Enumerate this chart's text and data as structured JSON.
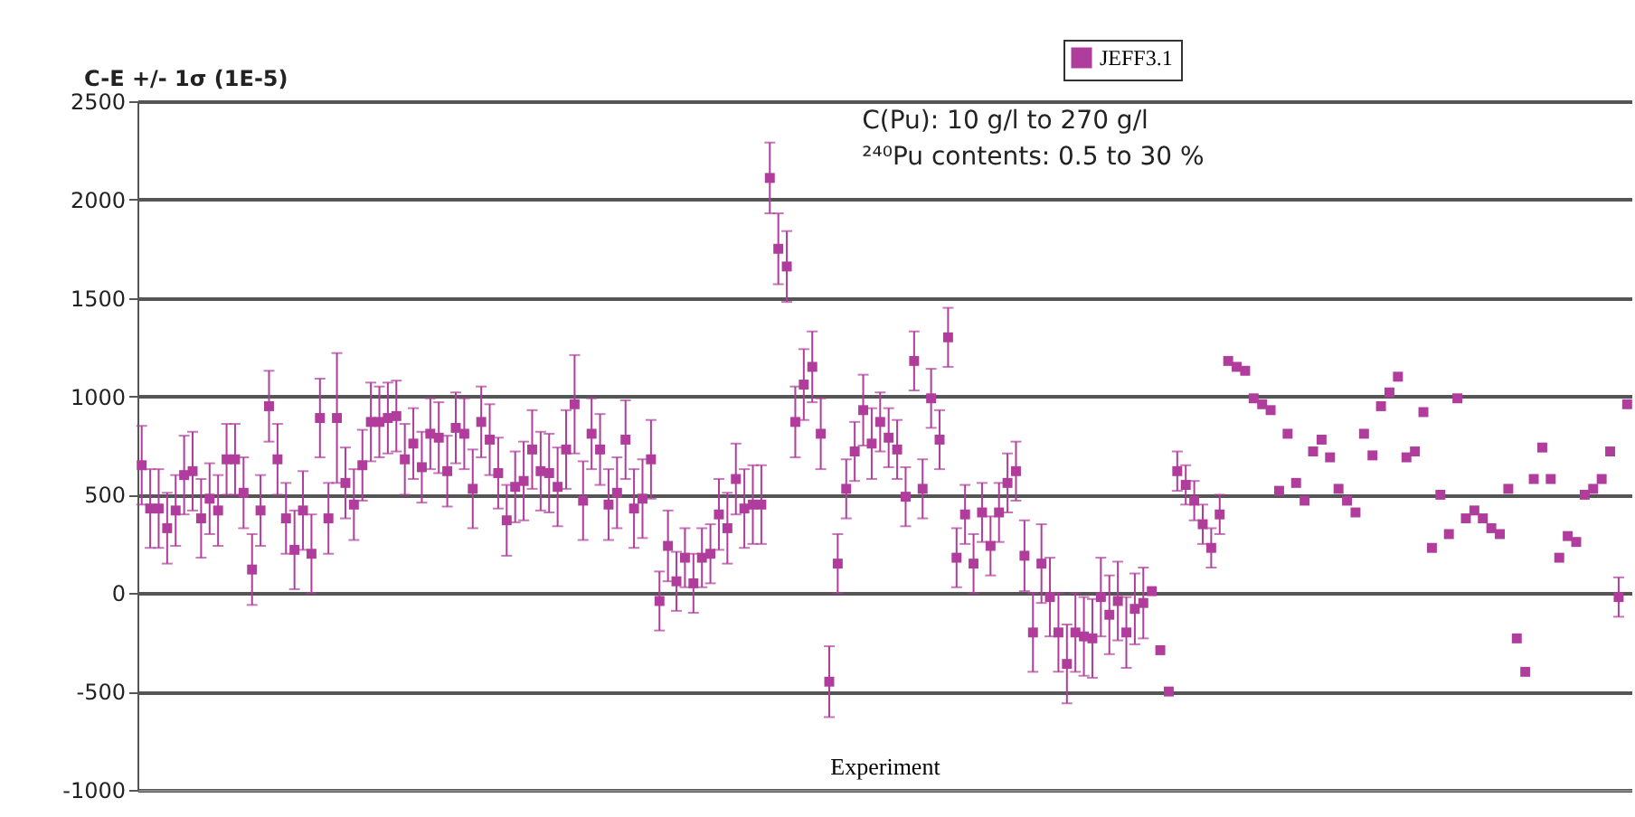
{
  "chart_data": {
    "type": "scatter",
    "ylabel": "C-E +/- 1σ (1E-5)",
    "xlabel": "Experiment",
    "annotations": [
      "C(Pu): 10 g/l to 270 g/l",
      "²⁴⁰Pu contents: 0.5 to 30 %"
    ],
    "categories": [
      null,
      null,
      null,
      null,
      null,
      null,
      null,
      null,
      null,
      null,
      null,
      null,
      null,
      null,
      null,
      null,
      null,
      null,
      null,
      null,
      null,
      null,
      null,
      null,
      null,
      null,
      null,
      null,
      null,
      null,
      null,
      null,
      null,
      null,
      null,
      null,
      null,
      null,
      null,
      null,
      null,
      null,
      null,
      null,
      null,
      null,
      null,
      null,
      null,
      null,
      null,
      null,
      null,
      null,
      null,
      null,
      null,
      null,
      null,
      null,
      null,
      null,
      null,
      null,
      null,
      null,
      null,
      null,
      null,
      null,
      null,
      null,
      null,
      null,
      null,
      null,
      null,
      null,
      null,
      null,
      null,
      null,
      null,
      null,
      null,
      null,
      null,
      null,
      null,
      null,
      null,
      null,
      null,
      null,
      null,
      null,
      null,
      null,
      null,
      null,
      null,
      null,
      null,
      null,
      null,
      null,
      null,
      null,
      null,
      null,
      null,
      null,
      null,
      null,
      null,
      null,
      null,
      null,
      null,
      null,
      null,
      null,
      null,
      null,
      null,
      null,
      null,
      null,
      null,
      null,
      null,
      null,
      null,
      null,
      null,
      null,
      null,
      null,
      null,
      null,
      null,
      null,
      null,
      null,
      null,
      null,
      null,
      null,
      null,
      null,
      null,
      null,
      null,
      null,
      null,
      null,
      null,
      null,
      null,
      null,
      null,
      null,
      null,
      null,
      null,
      null,
      null,
      null,
      null,
      null,
      null,
      null,
      null,
      null,
      null,
      null
    ],
    "series": [
      {
        "name": "JEFF3.1",
        "color": "#b03c9c",
        "values": [
          650,
          430,
          430,
          330,
          420,
          600,
          620,
          380,
          480,
          420,
          680,
          680,
          510,
          120,
          420,
          950,
          680,
          380,
          220,
          420,
          200,
          890,
          380,
          890,
          560,
          450,
          650,
          870,
          870,
          890,
          900,
          680,
          760,
          640,
          810,
          790,
          620,
          840,
          810,
          530,
          870,
          780,
          610,
          370,
          540,
          570,
          730,
          620,
          610,
          540,
          730,
          960,
          470,
          810,
          730,
          450,
          510,
          780,
          430,
          480,
          680,
          -40,
          240,
          60,
          180,
          50,
          180,
          200,
          400,
          330,
          580,
          430,
          450,
          450,
          2110,
          1750,
          1660,
          870,
          1060,
          1150,
          810,
          -450,
          150,
          530,
          720,
          930,
          760,
          870,
          790,
          730,
          490,
          1180,
          530,
          990,
          780,
          1300,
          180,
          400,
          150,
          410,
          240,
          410,
          560,
          620,
          190,
          -200,
          150,
          -20,
          -200,
          -360,
          -200,
          -220,
          -230,
          -20,
          -110,
          -40,
          -200,
          -80,
          -50,
          10,
          -290,
          -500,
          620,
          550,
          470,
          350,
          230,
          400,
          1180,
          1150,
          1130,
          990,
          960,
          930,
          520,
          810,
          560,
          470,
          720,
          780,
          690,
          530,
          470,
          410,
          810,
          700,
          950,
          1020,
          1100,
          690,
          720,
          920,
          230,
          500,
          300,
          990,
          380,
          420,
          380,
          330,
          300,
          530,
          -230,
          -400,
          580,
          740,
          580,
          180,
          290,
          260,
          500,
          530,
          580,
          720,
          -20,
          960
        ],
        "errors": [
          200,
          200,
          200,
          180,
          180,
          200,
          200,
          200,
          180,
          180,
          180,
          180,
          180,
          180,
          180,
          180,
          180,
          180,
          200,
          200,
          200,
          200,
          180,
          330,
          180,
          180,
          180,
          200,
          180,
          180,
          180,
          180,
          180,
          180,
          180,
          180,
          180,
          180,
          180,
          200,
          180,
          180,
          180,
          180,
          180,
          200,
          200,
          200,
          200,
          200,
          200,
          250,
          200,
          180,
          180,
          180,
          180,
          200,
          200,
          200,
          200,
          150,
          180,
          150,
          150,
          150,
          150,
          150,
          180,
          180,
          180,
          200,
          200,
          200,
          180,
          180,
          180,
          180,
          180,
          180,
          180,
          180,
          150,
          150,
          150,
          180,
          180,
          150,
          150,
          150,
          150,
          150,
          150,
          150,
          150,
          150,
          150,
          150,
          150,
          150,
          150,
          150,
          150,
          150,
          180,
          200,
          200,
          200,
          200,
          200,
          200,
          200,
          200,
          200,
          200,
          200,
          180,
          180,
          180,
          null,
          null,
          null,
          100,
          100,
          100,
          100,
          100,
          100,
          null,
          null,
          null,
          null,
          null,
          null,
          null,
          null,
          null,
          null,
          null,
          null,
          null,
          null,
          null,
          null,
          null,
          null,
          null,
          null,
          null,
          null,
          null,
          null,
          null,
          null,
          null,
          null,
          null,
          null,
          null,
          null,
          null,
          null,
          null,
          null,
          null,
          null,
          null,
          null,
          null,
          null,
          null,
          null,
          null,
          null,
          100,
          null
        ]
      }
    ],
    "ylim": [
      -1000,
      2500
    ],
    "yticks": [
      -1000,
      -500,
      0,
      500,
      1000,
      1500,
      2000,
      2500
    ],
    "grid": "y",
    "legend": "top",
    "marker": "square"
  }
}
